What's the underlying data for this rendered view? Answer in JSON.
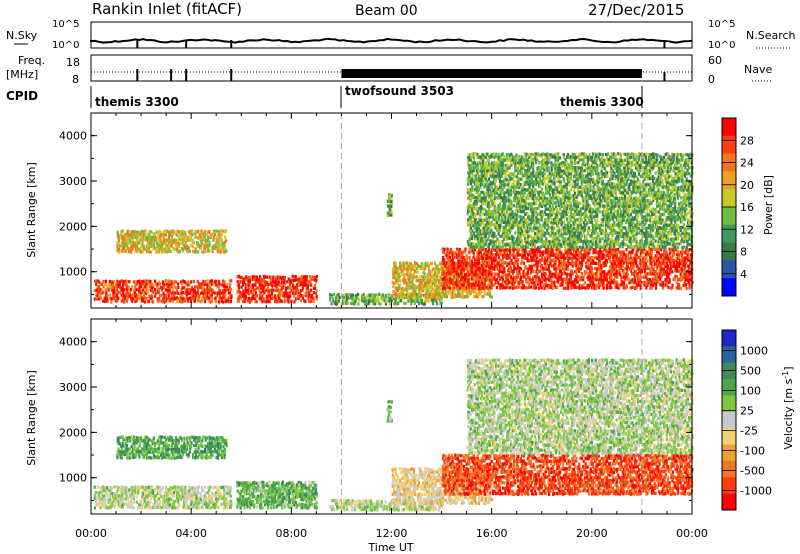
{
  "header": {
    "station": "Rankin Inlet (fitACF)",
    "beam": "Beam 00",
    "date": "27/Dec/2015"
  },
  "summary": {
    "nsky_label": "N.Sky",
    "nsky_ticks": [
      "10^5",
      "10^0"
    ],
    "nsearch_label": "N.Search",
    "nsearch_ticks": [
      "10^5",
      "10^0"
    ],
    "freq_label": "Freq.",
    "freq_unit": "[MHz]",
    "freq_ticks": [
      "18",
      "8"
    ],
    "nave_label": "Nave",
    "nave_ticks": [
      "60",
      "0"
    ],
    "cpid_label": "CPID",
    "cpid_segments": [
      {
        "name": "themis 3300",
        "start_hr": 0,
        "end_hr": 10
      },
      {
        "name": "twofsound 3503",
        "start_hr": 10,
        "end_hr": 22
      },
      {
        "name": "themis 3300",
        "start_hr": 22,
        "end_hr": 24
      }
    ]
  },
  "x_axis": {
    "label": "Time UT",
    "ticks": [
      "00:00",
      "04:00",
      "08:00",
      "12:00",
      "16:00",
      "20:00",
      "00:00"
    ]
  },
  "panels": {
    "power": {
      "ylabel": "Slant Range [km]",
      "yticks": [
        "1000",
        "2000",
        "3000",
        "4000"
      ],
      "cbar_label": "Power [dB]",
      "cbar_ticks": [
        "4",
        "8",
        "12",
        "16",
        "20",
        "24",
        "28"
      ],
      "cbar_colors": [
        "#0000ff",
        "#2c54a8",
        "#3a7a4a",
        "#3f9a5a",
        "#6cbf3c",
        "#c8c828",
        "#f0a020",
        "#f07818",
        "#ff4010",
        "#ff0000"
      ]
    },
    "velocity": {
      "ylabel": "Slant Range [km]",
      "yticks": [
        "1000",
        "2000",
        "3000",
        "4000"
      ],
      "cbar_label": "Velocity [m s",
      "cbar_label_sup": "-1",
      "cbar_label_end": "]",
      "cbar_ticks": [
        "1000",
        "500",
        "100",
        "25",
        "-25",
        "-100",
        "-500",
        "-1000"
      ],
      "cbar_colors": [
        "#1e28c8",
        "#2c64a0",
        "#3a8a5a",
        "#4aa848",
        "#7cc83c",
        "#c8c8c8",
        "#f0d070",
        "#f0a030",
        "#f07820",
        "#ff3c10",
        "#ff0000"
      ]
    }
  },
  "chart_data": [
    {
      "type": "heatmap",
      "title": "Power [dB]",
      "xlabel": "Time UT",
      "ylabel": "Slant Range [km]",
      "xlim_hr": [
        0,
        24
      ],
      "ylim": [
        200,
        4500
      ],
      "clim": [
        0,
        30
      ],
      "blobs": [
        {
          "t": [
            0.1,
            5.6
          ],
          "r": [
            300,
            800
          ],
          "v": 26
        },
        {
          "t": [
            1.0,
            5.4
          ],
          "r": [
            1400,
            1900
          ],
          "v": 18
        },
        {
          "t": [
            5.8,
            9.0
          ],
          "r": [
            300,
            900
          ],
          "v": 27
        },
        {
          "t": [
            9.5,
            14.0
          ],
          "r": [
            250,
            500
          ],
          "v": 12
        },
        {
          "t": [
            12.0,
            16.0
          ],
          "r": [
            400,
            1200
          ],
          "v": 18
        },
        {
          "t": [
            14.0,
            24.0
          ],
          "r": [
            600,
            1500
          ],
          "v": 27
        },
        {
          "t": [
            15.0,
            24.0
          ],
          "r": [
            1500,
            3600
          ],
          "v": 12
        },
        {
          "t": [
            11.8,
            12.0
          ],
          "r": [
            2200,
            2700
          ],
          "v": 12
        }
      ]
    },
    {
      "type": "heatmap",
      "title": "Velocity [m s-1]",
      "xlabel": "Time UT",
      "ylabel": "Slant Range [km]",
      "xlim_hr": [
        0,
        24
      ],
      "ylim": [
        200,
        4500
      ],
      "clim": [
        -1000,
        1000
      ],
      "blobs": [
        {
          "t": [
            0.1,
            5.6
          ],
          "r": [
            300,
            800
          ],
          "v": 60
        },
        {
          "t": [
            1.0,
            5.4
          ],
          "r": [
            1400,
            1900
          ],
          "v": 400
        },
        {
          "t": [
            5.8,
            9.0
          ],
          "r": [
            300,
            900
          ],
          "v": 300
        },
        {
          "t": [
            9.5,
            14.0
          ],
          "r": [
            250,
            500
          ],
          "v": 50
        },
        {
          "t": [
            12.0,
            16.0
          ],
          "r": [
            400,
            1200
          ],
          "v": -150
        },
        {
          "t": [
            14.0,
            24.0
          ],
          "r": [
            600,
            1500
          ],
          "v": -700
        },
        {
          "t": [
            15.0,
            24.0
          ],
          "r": [
            1500,
            3600
          ],
          "v": 80
        },
        {
          "t": [
            11.8,
            12.0
          ],
          "r": [
            2200,
            2700
          ],
          "v": 200
        }
      ]
    }
  ]
}
